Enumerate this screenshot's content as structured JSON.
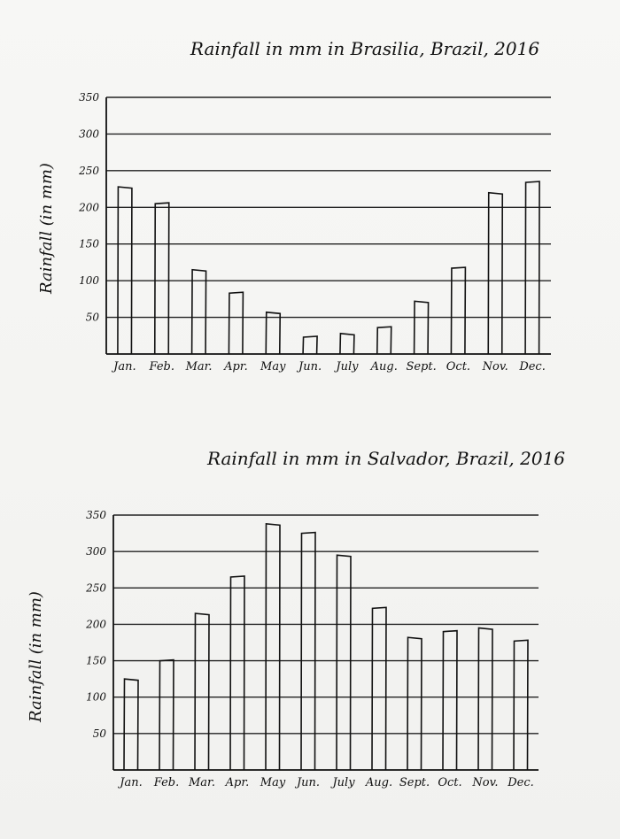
{
  "chart_data": [
    {
      "type": "bar",
      "title": "Rainfall in mm in Brasilia, Brazil, 2016",
      "xlabel": "",
      "ylabel": "Rainfall (in mm)",
      "ylim": [
        0,
        350
      ],
      "yticks": [
        "50",
        "100",
        "150",
        "200",
        "250",
        "300",
        "350"
      ],
      "categories": [
        "Jan.",
        "Feb.",
        "Mar.",
        "Apr.",
        "May",
        "Jun.",
        "July",
        "Aug.",
        "Sept.",
        "Oct.",
        "Nov.",
        "Dec."
      ],
      "values": [
        228,
        205,
        115,
        83,
        57,
        23,
        28,
        36,
        72,
        117,
        220,
        234
      ],
      "grid": true,
      "bar_style": "hand-drawn outline"
    },
    {
      "type": "bar",
      "title": "Rainfall in mm in Salvador, Brazil, 2016",
      "xlabel": "",
      "ylabel": "Rainfall (in mm)",
      "ylim": [
        0,
        350
      ],
      "yticks": [
        "50",
        "100",
        "150",
        "200",
        "250",
        "300",
        "350"
      ],
      "categories": [
        "Jan.",
        "Feb.",
        "Mar.",
        "Apr.",
        "May",
        "Jun.",
        "July",
        "Aug.",
        "Sept.",
        "Oct.",
        "Nov.",
        "Dec."
      ],
      "values": [
        125,
        150,
        215,
        265,
        338,
        325,
        295,
        222,
        182,
        190,
        195,
        177
      ],
      "grid": true,
      "bar_style": "hand-drawn outline"
    }
  ]
}
